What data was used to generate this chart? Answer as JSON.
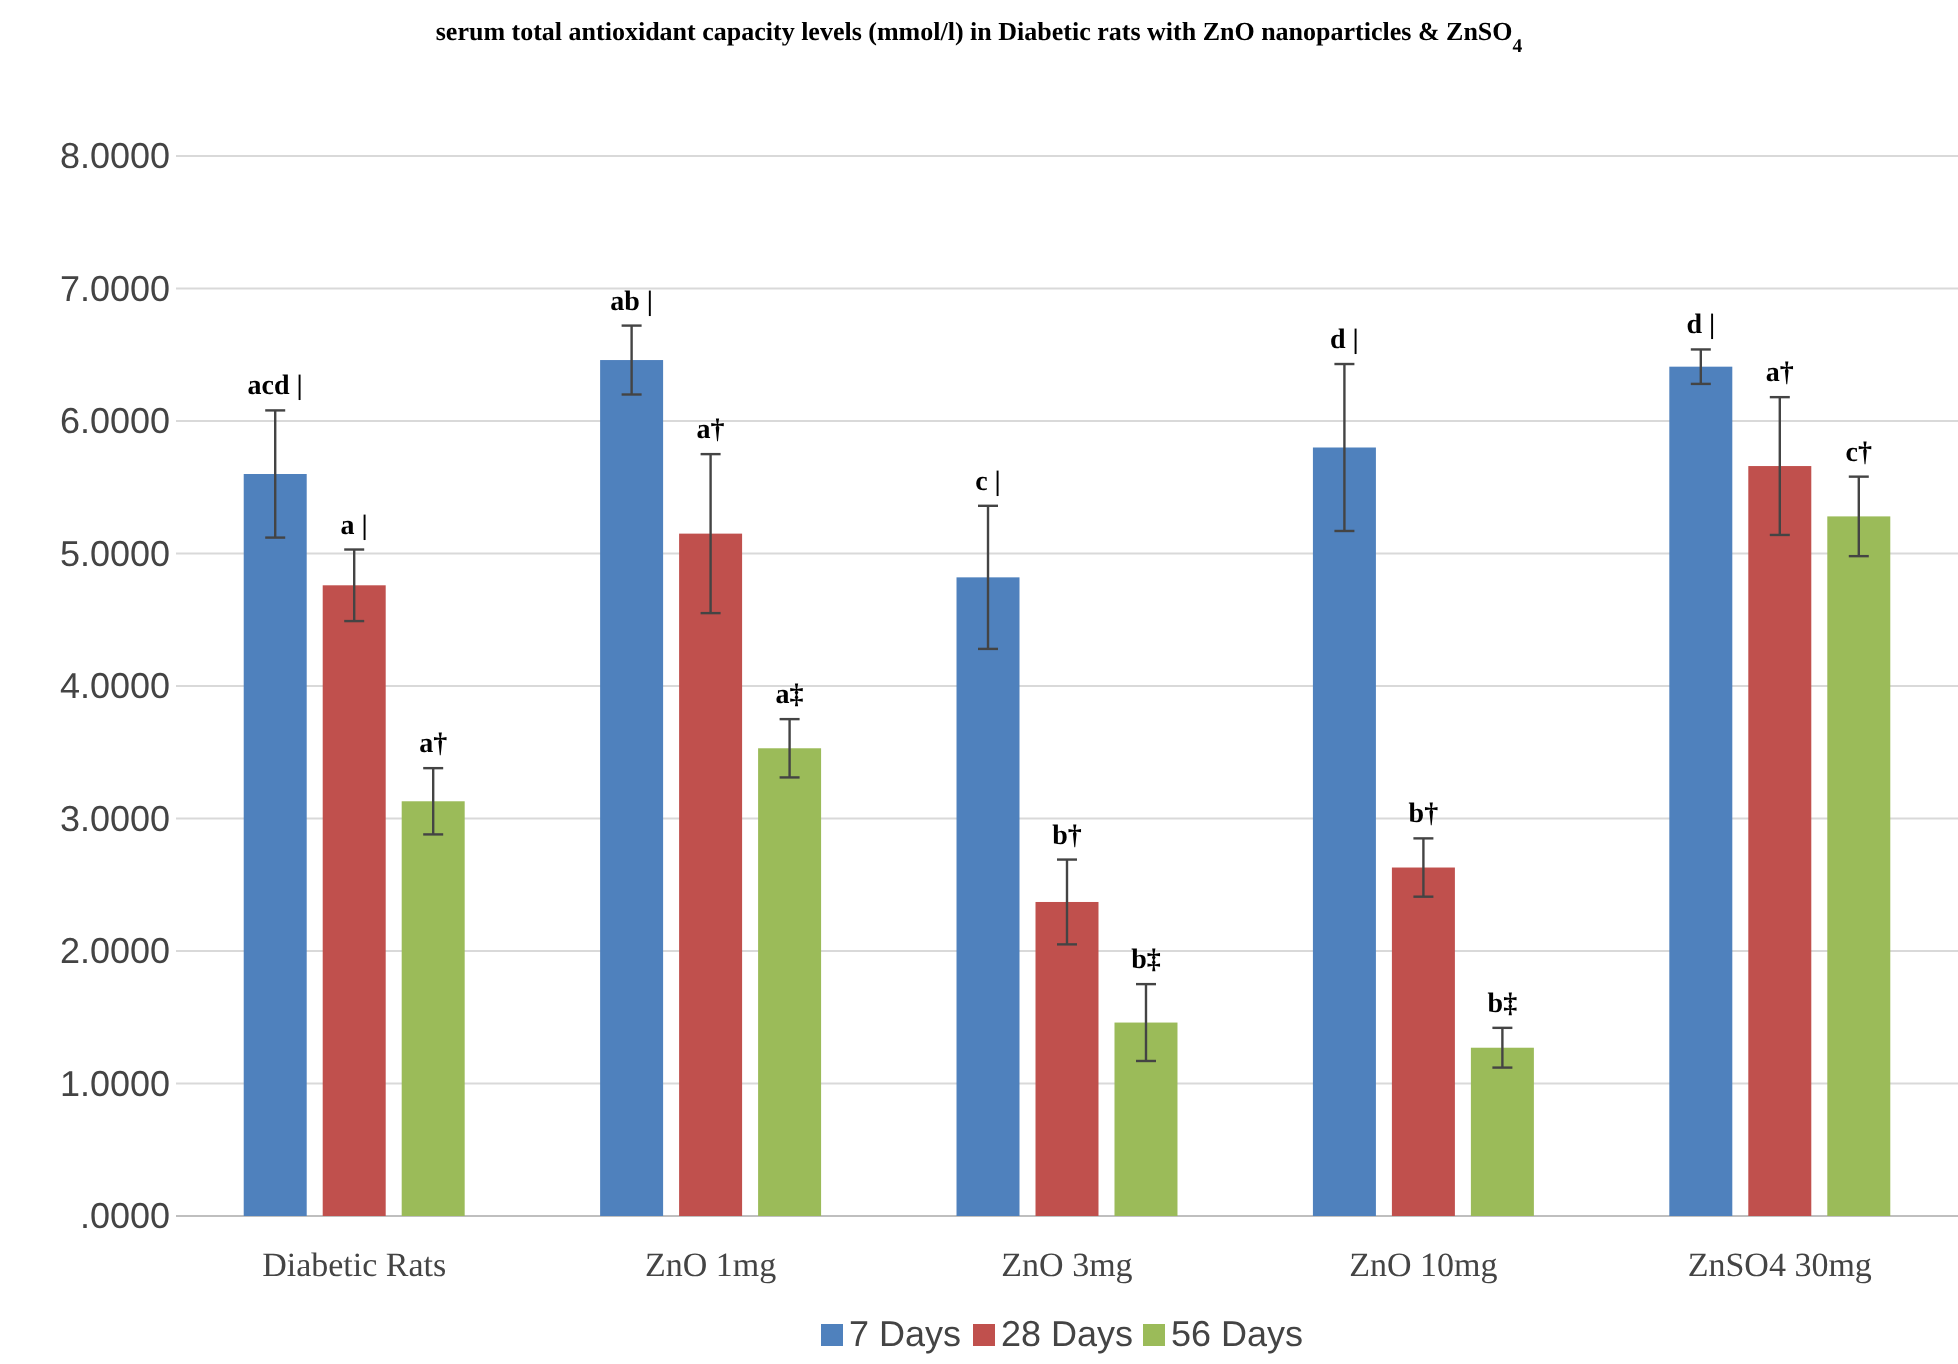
{
  "chart_data": {
    "type": "bar",
    "title": "serum total antioxidant capacity levels (mmol/l) in Diabetic rats with ZnO nanoparticles & ZnSO$_{4}$",
    "categories": [
      "Diabetic Rats",
      "ZnO 1mg",
      "ZnO 3mg",
      "ZnO 10mg",
      "ZnSO4 30mg"
    ],
    "series": [
      {
        "name": "7 Days",
        "color": "#4f81bd",
        "values": [
          5.6,
          6.46,
          4.82,
          5.8,
          6.41
        ],
        "errors": [
          0.48,
          0.26,
          0.54,
          0.63,
          0.13
        ]
      },
      {
        "name": "28 Days",
        "color": "#c0504d",
        "values": [
          4.76,
          5.15,
          2.37,
          2.63,
          5.66
        ],
        "errors": [
          0.27,
          0.6,
          0.32,
          0.22,
          0.52
        ]
      },
      {
        "name": "56 Days",
        "color": "#9bbb59",
        "values": [
          3.13,
          3.53,
          1.46,
          1.27,
          5.28
        ],
        "errors": [
          0.25,
          0.22,
          0.29,
          0.15,
          0.3
        ]
      }
    ],
    "ylim": [
      0,
      8
    ],
    "yticks": [
      {
        "value": 0,
        "label": ".0000"
      },
      {
        "value": 1,
        "label": "1.0000"
      },
      {
        "value": 2,
        "label": "2.0000"
      },
      {
        "value": 3,
        "label": "3.0000"
      },
      {
        "value": 4,
        "label": "4.0000"
      },
      {
        "value": 5,
        "label": "5.0000"
      },
      {
        "value": 6,
        "label": "6.0000"
      },
      {
        "value": 7,
        "label": "7.0000"
      },
      {
        "value": 8,
        "label": "8.0000"
      }
    ],
    "grid": "y",
    "legend": "bottom",
    "annotations": [
      "acd |",
      "a |",
      "a†",
      "ab |",
      "a†",
      "a‡",
      "c |",
      "b†",
      "b‡",
      "d |",
      "b†",
      "b‡",
      "d |",
      "a†",
      "c†"
    ]
  }
}
